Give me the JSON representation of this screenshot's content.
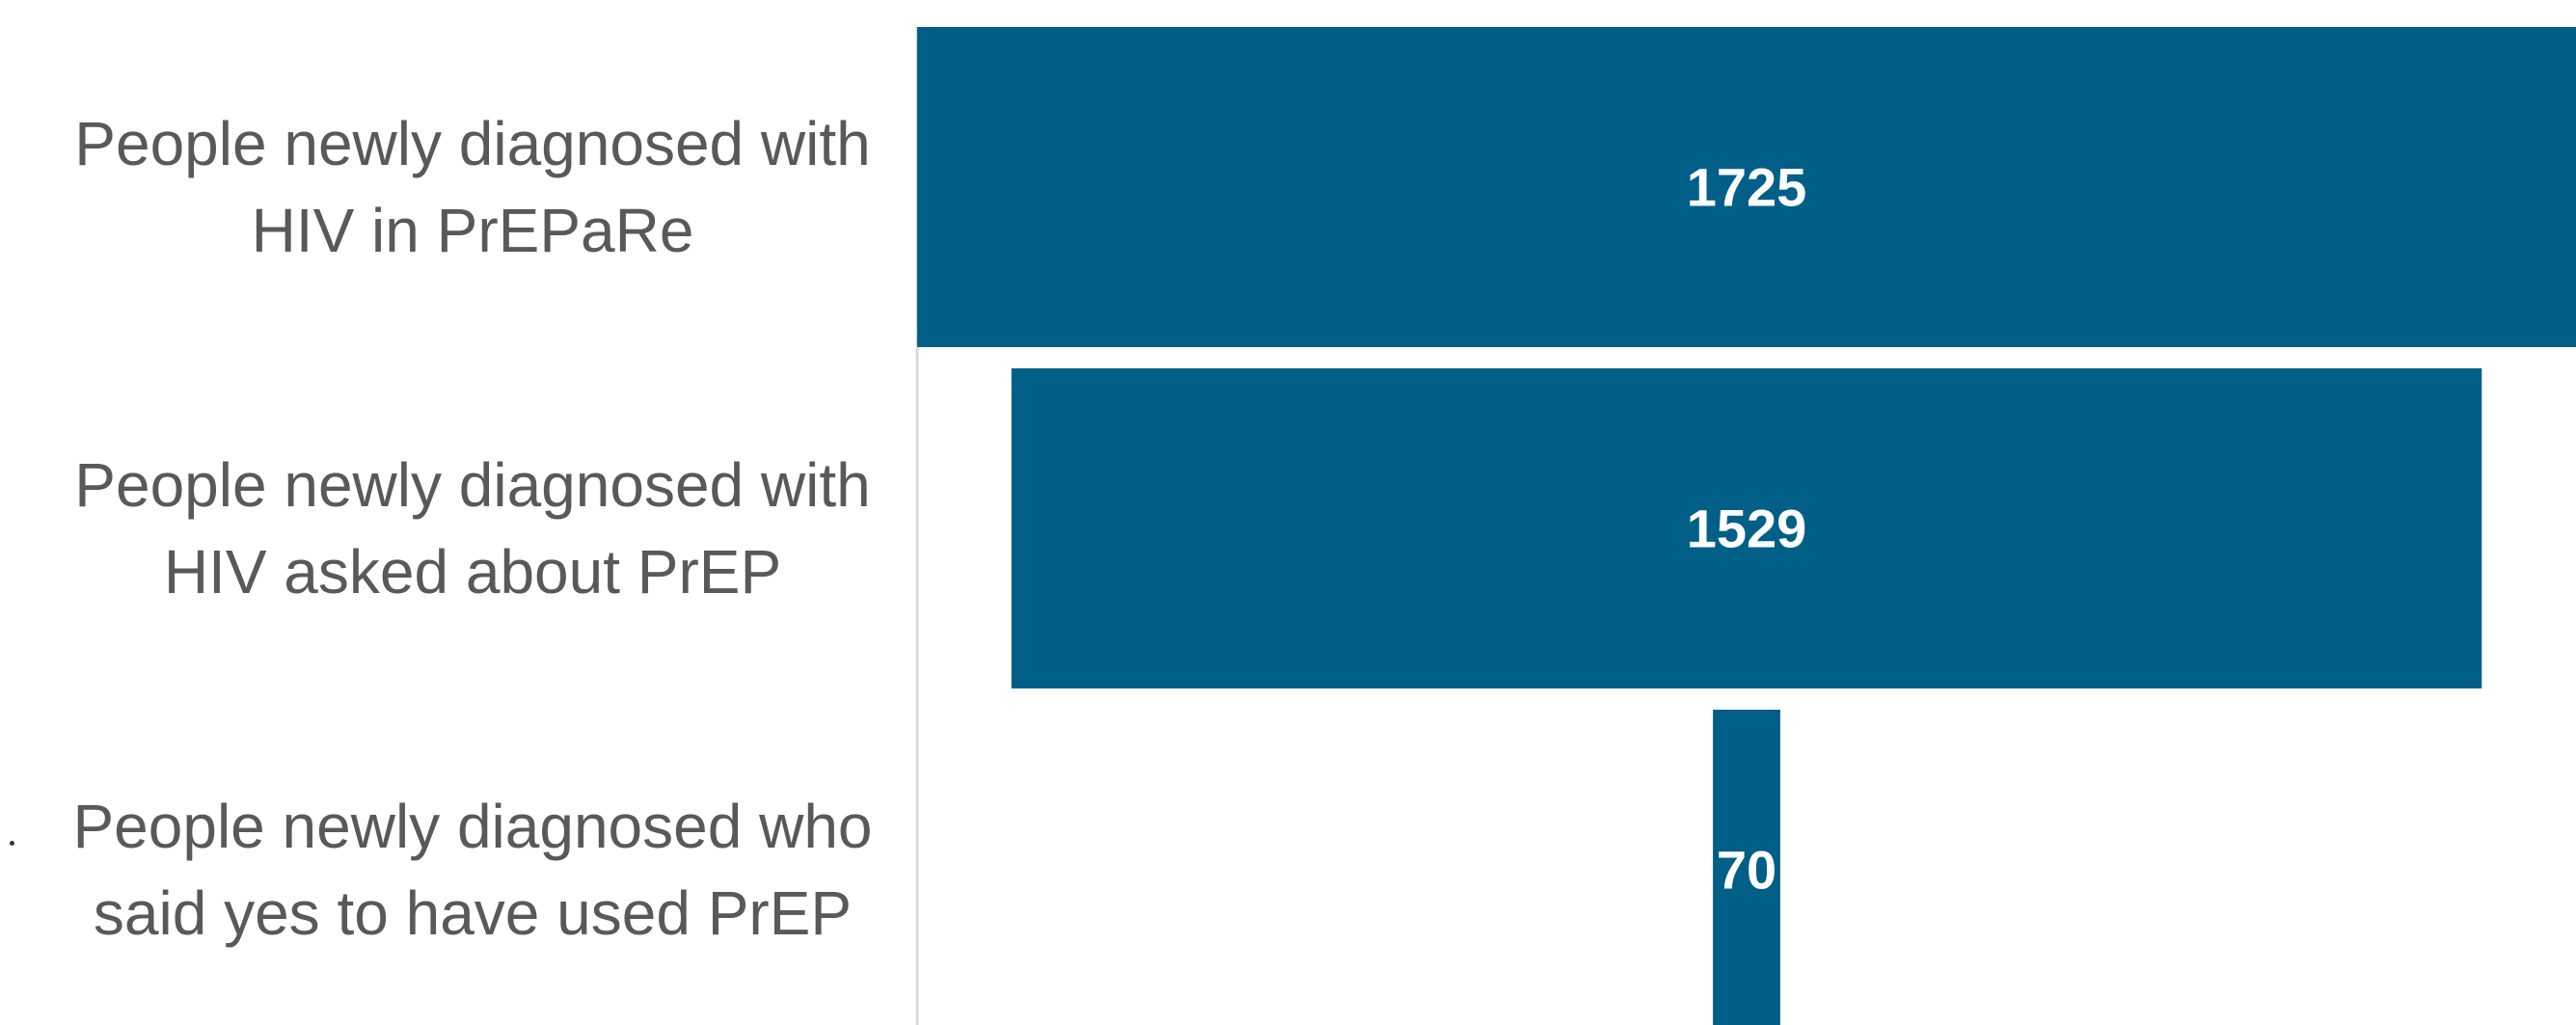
{
  "chart_data": {
    "type": "bar",
    "orientation": "horizontal-funnel",
    "categories": [
      [
        "People newly diagnosed with",
        "HIV in PrEPaRe"
      ],
      [
        "People newly diagnosed with",
        "HIV asked about PrEP"
      ],
      [
        "People newly diagnosed who",
        "said yes to have used PrEP"
      ]
    ],
    "values": [
      1725,
      1529,
      70
    ],
    "data_labels": [
      "1725",
      "1529",
      "70"
    ],
    "xlim": [
      0,
      1725
    ],
    "grid": false,
    "legend": "none",
    "colors": {
      "bar": "#005F87",
      "category_text": "#595959",
      "value_text": "#FFFFFF",
      "axis_line": "#D9D9D9"
    }
  }
}
